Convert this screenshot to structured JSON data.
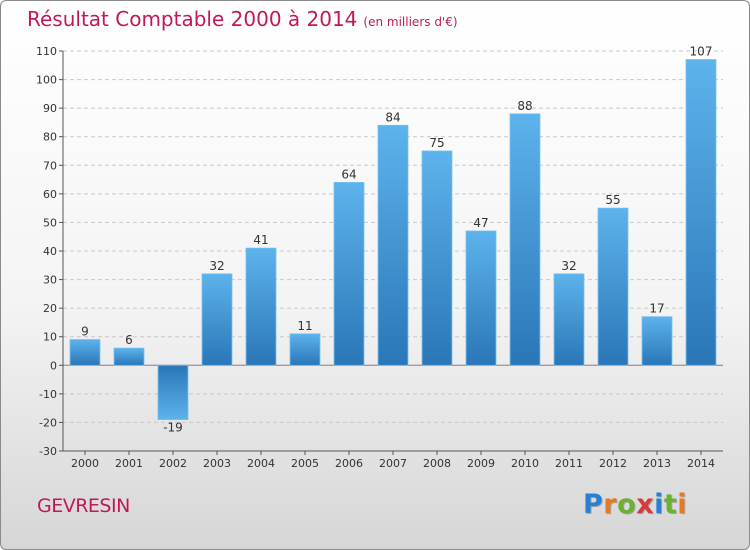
{
  "chart_data": {
    "type": "bar",
    "title": "Résultat Comptable 2000 à 2014",
    "subtitle": "(en milliers d'€)",
    "categories": [
      "2000",
      "2001",
      "2002",
      "2003",
      "2004",
      "2005",
      "2006",
      "2007",
      "2008",
      "2009",
      "2010",
      "2011",
      "2012",
      "2013",
      "2014"
    ],
    "values": [
      9,
      6,
      -19,
      32,
      41,
      11,
      64,
      84,
      75,
      47,
      88,
      32,
      55,
      17,
      107
    ],
    "data_labels": [
      "9",
      "6",
      "-19",
      "32",
      "41",
      "11",
      "64",
      "84",
      "75",
      "47",
      "88",
      "32",
      "55",
      "17",
      "107"
    ],
    "ylim": [
      -30,
      110
    ],
    "yticks": [
      -30,
      -20,
      -10,
      0,
      10,
      20,
      30,
      40,
      50,
      60,
      70,
      80,
      90,
      100,
      110
    ],
    "ytick_labels": [
      "-30",
      "-20",
      "-10",
      "0",
      "10",
      "20",
      "30",
      "40",
      "50",
      "60",
      "70",
      "80",
      "90",
      "100",
      "110"
    ],
    "grid": true,
    "xlabel": "",
    "ylabel": "",
    "bar_color": "#3d8fd4"
  },
  "commune": "GEVRESIN",
  "logo": {
    "text": "Proxiti",
    "letters": [
      {
        "ch": "P",
        "color": "#2a7fd4"
      },
      {
        "ch": "r",
        "color": "#e8791f"
      },
      {
        "ch": "o",
        "color": "#6bb233"
      },
      {
        "ch": "x",
        "color": "#d63a3a"
      },
      {
        "ch": "i",
        "color": "#2a7fd4"
      },
      {
        "ch": "t",
        "color": "#6bb233"
      },
      {
        "ch": "i",
        "color": "#e8791f"
      }
    ]
  }
}
